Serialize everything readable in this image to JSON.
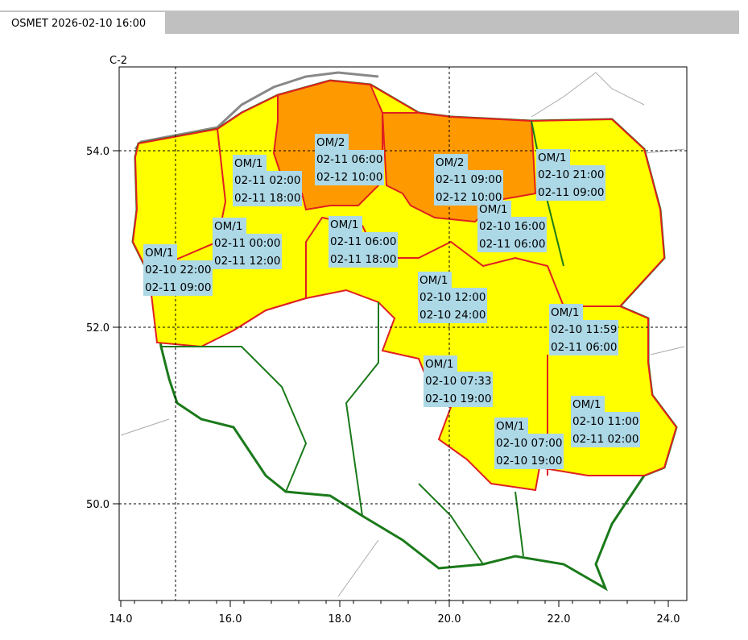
{
  "header": {
    "tab": "OSMET 2026-02-10 16:00"
  },
  "map": {
    "corner_label": "C-2",
    "x_ticks": [
      "14.0",
      "16.0",
      "18.0",
      "20.0",
      "22.0",
      "24.0"
    ],
    "y_ticks": [
      "50.0",
      "52.0",
      "54.0"
    ],
    "warnings": [
      {
        "code": "OM/1",
        "start": "02-11 02:00",
        "end": "02-11 18:00"
      },
      {
        "code": "OM/2",
        "start": "02-11 06:00",
        "end": "02-12 10:00"
      },
      {
        "code": "OM/2",
        "start": "02-11 09:00",
        "end": "02-12 10:00"
      },
      {
        "code": "OM/1",
        "start": "02-10 21:00",
        "end": "02-11 09:00"
      },
      {
        "code": "OM/1",
        "start": "02-11 00:00",
        "end": "02-11 12:00"
      },
      {
        "code": "OM/1",
        "start": "02-11 06:00",
        "end": "02-11 18:00"
      },
      {
        "code": "OM/1",
        "start": "02-10 16:00",
        "end": "02-11 06:00"
      },
      {
        "code": "OM/1",
        "start": "02-10 22:00",
        "end": "02-11 09:00"
      },
      {
        "code": "OM/1",
        "start": "02-10 12:00",
        "end": "02-10 24:00"
      },
      {
        "code": "OM/1",
        "start": "02-10 11:59",
        "end": "02-11 06:00"
      },
      {
        "code": "OM/1",
        "start": "02-10 07:33",
        "end": "02-10 19:00"
      },
      {
        "code": "OM/1",
        "start": "02-10 11:00",
        "end": "02-11 02:00"
      },
      {
        "code": "OM/1",
        "start": "02-10 07:00",
        "end": "02-10 19:00"
      }
    ]
  }
}
